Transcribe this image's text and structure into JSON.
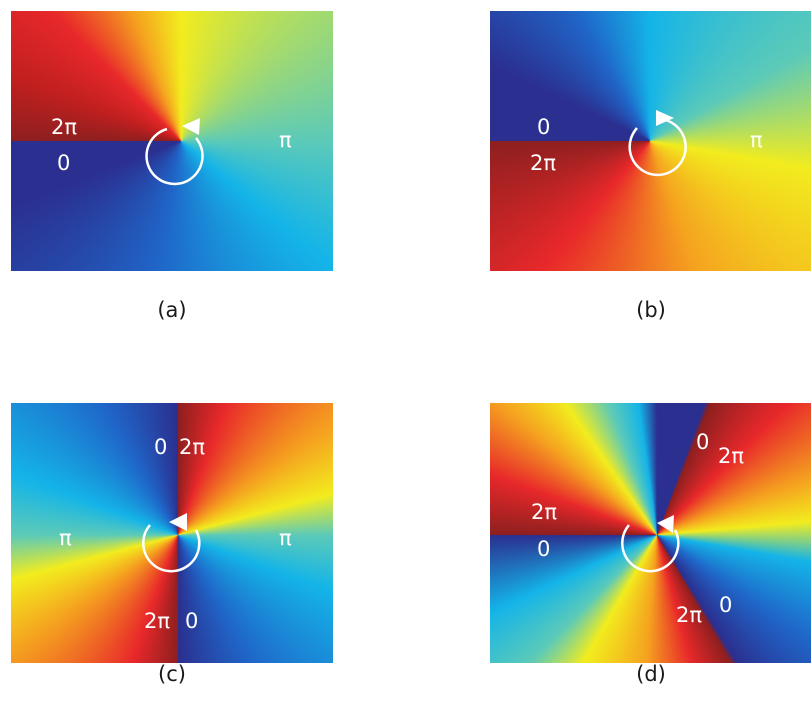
{
  "panels": [
    {
      "caption": "(a)",
      "labels": [
        "2π",
        "0",
        "π"
      ],
      "arrow_direction": "counterclockwise"
    },
    {
      "caption": "(b)",
      "labels": [
        "0",
        "2π",
        "π"
      ],
      "arrow_direction": "clockwise"
    },
    {
      "caption": "(c)",
      "labels": [
        "0",
        "2π",
        "π",
        "π",
        "2π",
        "0"
      ],
      "arrow_direction": "counterclockwise"
    },
    {
      "caption": "(d)",
      "labels": [
        "0",
        "2π",
        "2π",
        "0",
        "2π",
        "0"
      ],
      "arrow_direction": "counterclockwise"
    }
  ],
  "colormap": [
    "#2b2f8f",
    "#1f66c8",
    "#14b4e8",
    "#5ccab8",
    "#f2ec1e",
    "#f5a31f",
    "#e8282a",
    "#8e1f1f"
  ]
}
